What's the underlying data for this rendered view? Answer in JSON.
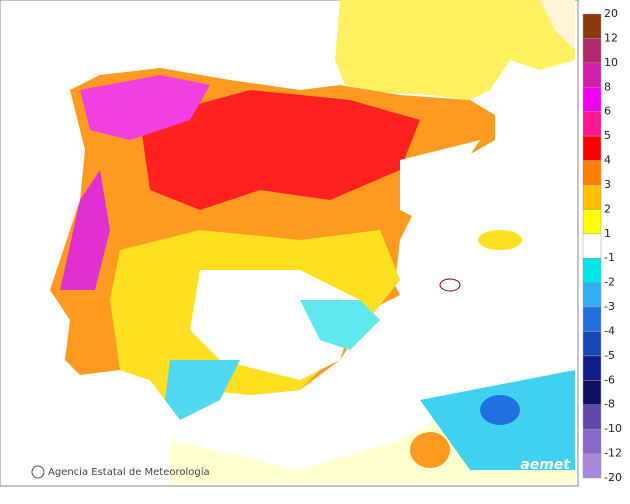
{
  "legend": {
    "labels": [
      "20",
      "12",
      "10",
      "8",
      "6",
      "5",
      "4",
      "3",
      "2",
      "1",
      "-1",
      "-2",
      "-3",
      "-4",
      "-5",
      "-6",
      "-8",
      "-10",
      "-12",
      "-20"
    ],
    "colors": [
      "#8b3a0f",
      "#b02a6a",
      "#d020a8",
      "#f000f0",
      "#ff1493",
      "#ff0000",
      "#ff8000",
      "#ffc000",
      "#ffff00",
      "#ffffff",
      "#00e6e6",
      "#30b0f0",
      "#2070e0",
      "#1848b8",
      "#10208a",
      "#101060",
      "#6048a8",
      "#8868c8",
      "#a888d8"
    ]
  },
  "credit": "Agencia Estatal de Meteorología",
  "logo": "aemet"
}
